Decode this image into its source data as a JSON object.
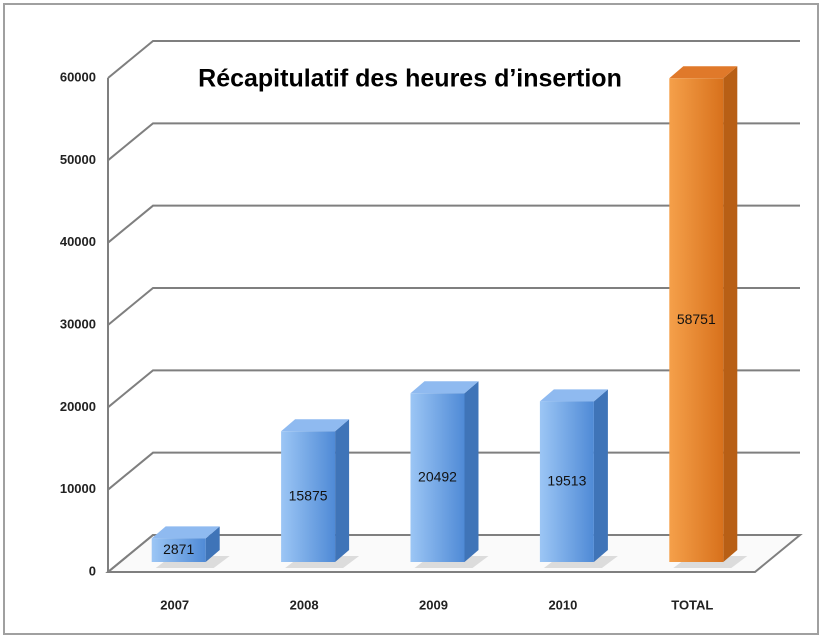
{
  "chart_data": {
    "type": "bar3d",
    "title": "Récapitulatif des heures d’insertion",
    "categories": [
      "2007",
      "2008",
      "2009",
      "2010",
      "TOTAL"
    ],
    "values": [
      2871,
      15875,
      20492,
      19513,
      58751
    ],
    "colors": [
      "#6ea6e6",
      "#6ea6e6",
      "#6ea6e6",
      "#6ea6e6",
      "#e8832a"
    ],
    "ylim": [
      0,
      60000
    ],
    "yticks": [
      0,
      10000,
      20000,
      30000,
      40000,
      50000,
      60000
    ],
    "grid": true
  }
}
